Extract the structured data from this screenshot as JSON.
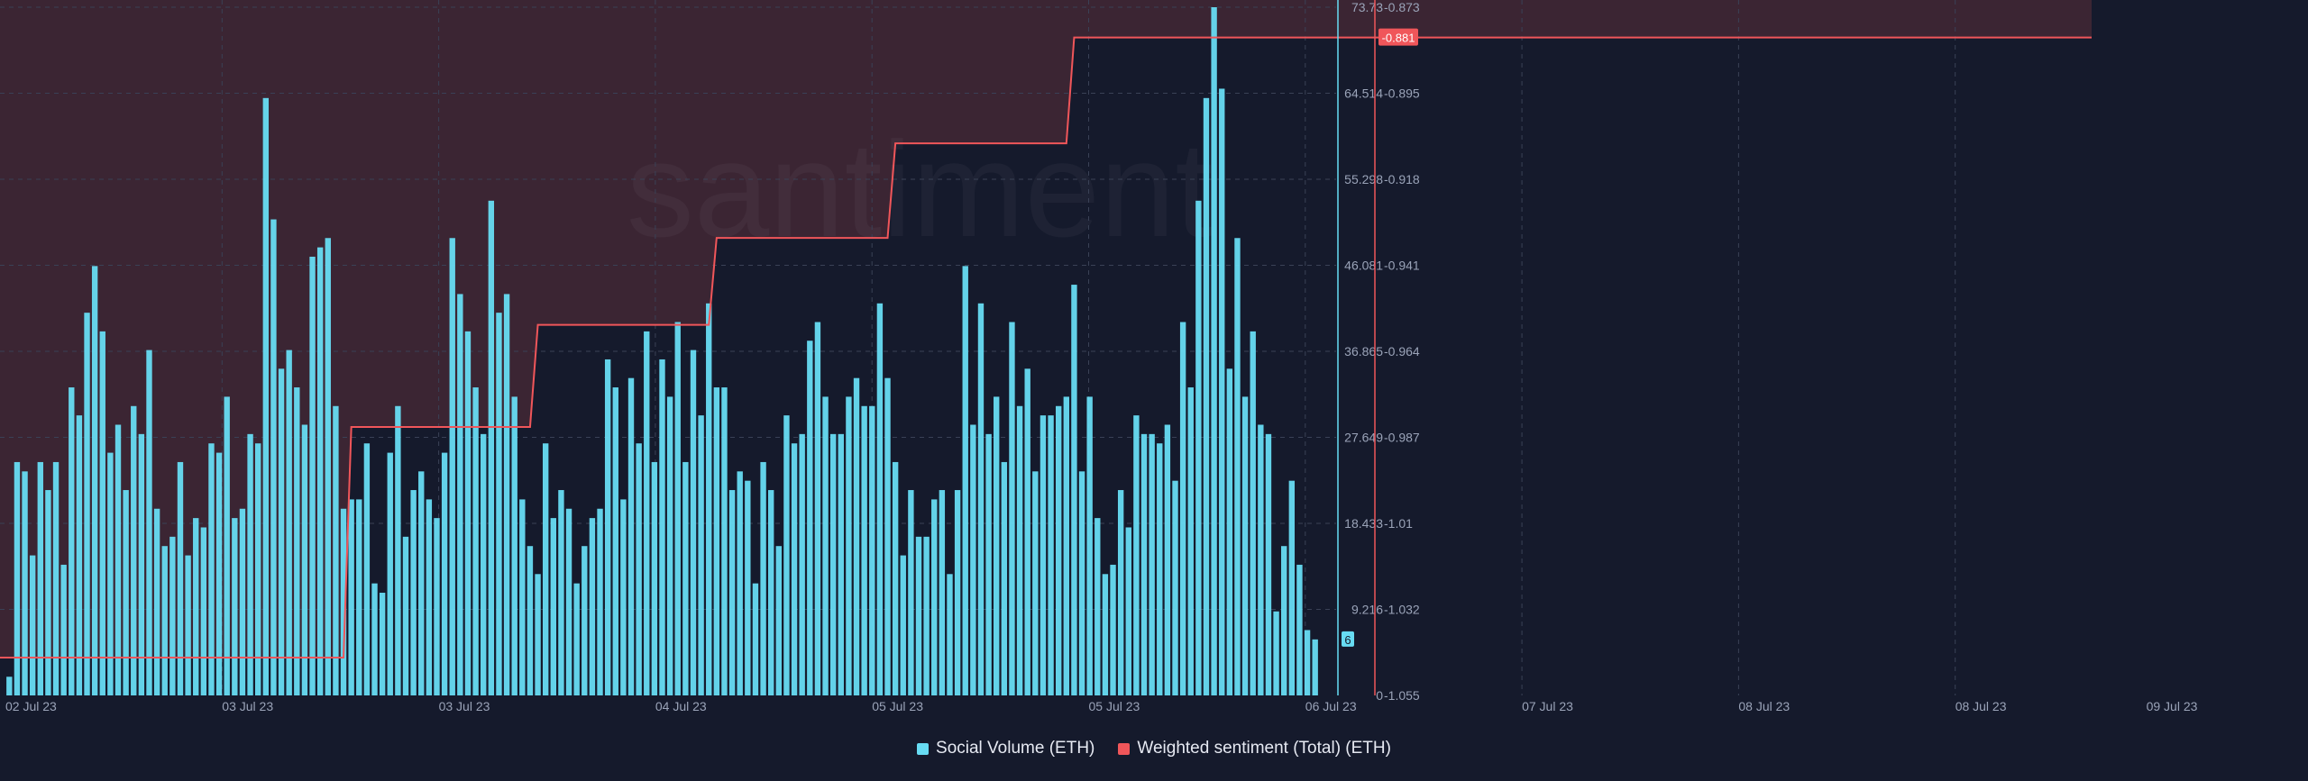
{
  "watermark": "santiment",
  "colors": {
    "background": "#151a2c",
    "social_volume": "#67dcf3",
    "sentiment": "#f0565a",
    "negative_zone": "#3b2533",
    "grid": "#3a4156"
  },
  "legend": {
    "social_volume": "Social Volume (ETH)",
    "sentiment": "Weighted sentiment (Total) (ETH)"
  },
  "chart_data": {
    "type": "bar",
    "x_ticks": [
      "02 Jul 23",
      "03 Jul 23",
      "03 Jul 23",
      "04 Jul 23",
      "05 Jul 23",
      "05 Jul 23",
      "06 Jul 23",
      "07 Jul 23",
      "08 Jul 23",
      "08 Jul 23",
      "09 Jul 23"
    ],
    "y_left": {
      "ticks": [
        "0",
        "9.216",
        "18.433",
        "27.649",
        "36.865",
        "46.081",
        "55.298",
        "64.514",
        "73.73"
      ],
      "range": [
        0,
        73.73
      ],
      "current_value_label": "6"
    },
    "y_right": {
      "ticks": [
        "-1.055",
        "-1.032",
        "-1.01",
        "-0.987",
        "-0.964",
        "-0.941",
        "-0.918",
        "-0.895",
        "-0.873"
      ],
      "range": [
        -1.055,
        -0.873
      ],
      "current_value_label": "-0.881"
    },
    "series": [
      {
        "name": "Social Volume (ETH)",
        "type": "bar",
        "values": [
          2,
          25,
          24,
          15,
          25,
          22,
          25,
          14,
          33,
          30,
          41,
          46,
          39,
          26,
          29,
          22,
          31,
          28,
          37,
          20,
          16,
          17,
          25,
          15,
          19,
          18,
          27,
          26,
          32,
          19,
          20,
          28,
          27,
          64,
          51,
          35,
          37,
          33,
          29,
          47,
          48,
          49,
          31,
          20,
          21,
          21,
          27,
          12,
          11,
          26,
          31,
          17,
          22,
          24,
          21,
          19,
          26,
          49,
          43,
          39,
          33,
          28,
          53,
          41,
          43,
          32,
          21,
          16,
          13,
          27,
          19,
          22,
          20,
          12,
          16,
          19,
          20,
          36,
          33,
          21,
          34,
          27,
          39,
          25,
          36,
          32,
          40,
          25,
          37,
          30,
          42,
          33,
          33,
          22,
          24,
          23,
          12,
          25,
          22,
          16,
          30,
          27,
          28,
          38,
          40,
          32,
          28,
          28,
          32,
          34,
          31,
          31,
          42,
          34,
          25,
          15,
          22,
          17,
          17,
          21,
          22,
          13,
          22,
          46,
          29,
          42,
          28,
          32,
          25,
          40,
          31,
          35,
          24,
          30,
          30,
          31,
          32,
          44,
          24,
          32,
          19,
          13,
          14,
          22,
          18,
          30,
          28,
          28,
          27,
          29,
          23,
          40,
          33,
          53,
          64,
          73.73,
          65,
          35,
          49,
          32,
          39,
          29,
          28,
          9,
          16,
          23,
          14,
          7,
          6
        ]
      },
      {
        "name": "Weighted sentiment (Total) (ETH)",
        "type": "line",
        "step_points": [
          {
            "bar_index": 0,
            "value": -1.045
          },
          {
            "bar_index": 43,
            "value": -1.045
          },
          {
            "bar_index": 44,
            "value": -0.984
          },
          {
            "bar_index": 67,
            "value": -0.984
          },
          {
            "bar_index": 68,
            "value": -0.957
          },
          {
            "bar_index": 90,
            "value": -0.957
          },
          {
            "bar_index": 91,
            "value": -0.934
          },
          {
            "bar_index": 113,
            "value": -0.934
          },
          {
            "bar_index": 114,
            "value": -0.909
          },
          {
            "bar_index": 136,
            "value": -0.909
          },
          {
            "bar_index": 137,
            "value": -0.881
          },
          {
            "bar_index": 159,
            "value": -0.881
          }
        ]
      }
    ]
  }
}
